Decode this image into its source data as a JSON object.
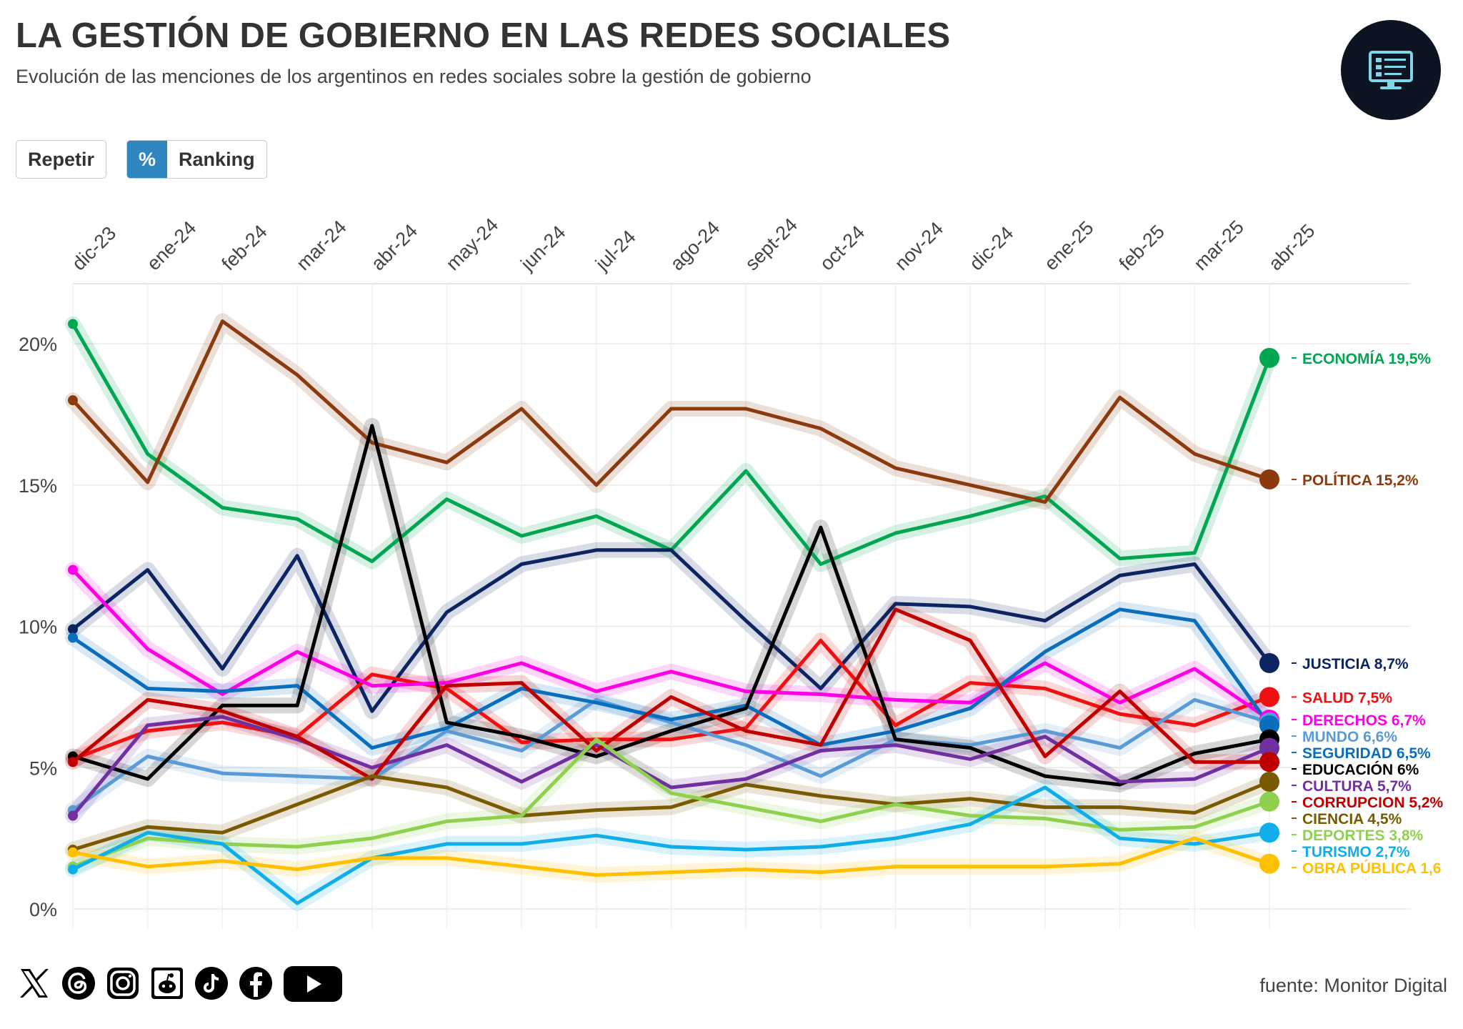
{
  "header": {
    "title": "LA GESTIÓN DE GOBIERNO EN LAS REDES SOCIALES",
    "subtitle": "Evolución de las menciones de los argentinos en redes sociales sobre la gestión de gobierno",
    "logo_icon": "monitor-icon"
  },
  "controls": {
    "replay_label": "Repetir",
    "percent_label": "%",
    "ranking_label": "Ranking",
    "active": "%"
  },
  "footer": {
    "source": "fuente: Monitor Digital",
    "social_icons": [
      "x-icon",
      "threads-icon",
      "instagram-icon",
      "reddit-icon",
      "tiktok-icon",
      "facebook-icon",
      "youtube-icon"
    ]
  },
  "chart_data": {
    "type": "line",
    "title": "LA GESTIÓN DE GOBIERNO EN LAS REDES SOCIALES",
    "subtitle": "Evolución de las menciones de los argentinos en redes sociales sobre la gestión de gobierno",
    "categories": [
      "dic-23",
      "ene-24",
      "feb-24",
      "mar-24",
      "abr-24",
      "may-24",
      "jun-24",
      "jul-24",
      "ago-24",
      "sept-24",
      "oct-24",
      "nov-24",
      "dic-24",
      "ene-25",
      "feb-25",
      "mar-25",
      "abr-25"
    ],
    "ylim": [
      0,
      22
    ],
    "yticks": [
      0,
      5,
      10,
      15,
      20
    ],
    "ytick_labels": [
      "0%",
      "5%",
      "10%",
      "15%",
      "20%"
    ],
    "grid": true,
    "legend": "right end labels",
    "series": [
      {
        "name": "ECONOMÍA",
        "label": "ECONOMÍA 19,5%",
        "color": "#00a651",
        "values": [
          20.7,
          16.1,
          14.2,
          13.8,
          12.3,
          14.5,
          13.2,
          13.9,
          12.7,
          15.5,
          12.2,
          13.3,
          13.9,
          14.6,
          12.4,
          12.6,
          19.5
        ]
      },
      {
        "name": "POLÍTICA",
        "label": "POLÍTICA 15,2%",
        "color": "#8b3a0e",
        "values": [
          18.0,
          15.1,
          20.8,
          18.9,
          16.5,
          15.8,
          17.7,
          15.0,
          17.7,
          17.7,
          17.0,
          15.6,
          15.0,
          14.4,
          18.1,
          16.1,
          15.2
        ]
      },
      {
        "name": "JUSTICIA",
        "label": "JUSTICIA 8,7%",
        "color": "#0c2461",
        "values": [
          9.9,
          12.0,
          8.5,
          12.5,
          7.0,
          10.5,
          12.2,
          12.7,
          12.7,
          10.2,
          7.8,
          10.8,
          10.7,
          10.2,
          11.8,
          12.2,
          8.7
        ]
      },
      {
        "name": "SALUD",
        "label": "SALUD 7,5%",
        "color": "#ee1111",
        "values": [
          5.3,
          6.3,
          6.6,
          6.1,
          8.3,
          7.8,
          5.9,
          6.0,
          6.0,
          6.4,
          9.5,
          6.5,
          8.0,
          7.8,
          6.9,
          6.5,
          7.5
        ]
      },
      {
        "name": "DERECHOS",
        "label": "DERECHOS 6,7%",
        "color": "#ff00e6",
        "values": [
          12.0,
          9.2,
          7.6,
          9.1,
          7.9,
          8.0,
          8.7,
          7.7,
          8.4,
          7.7,
          7.6,
          7.4,
          7.3,
          8.7,
          7.3,
          8.5,
          6.7
        ]
      },
      {
        "name": "MUNDO",
        "label": "MUNDO 6,6%",
        "color": "#5b9bd5",
        "values": [
          3.5,
          5.4,
          4.8,
          4.7,
          4.6,
          6.3,
          5.6,
          7.4,
          6.6,
          5.8,
          4.7,
          6.0,
          5.8,
          6.3,
          5.7,
          7.4,
          6.6
        ]
      },
      {
        "name": "SEGURIDAD",
        "label": "SEGURIDAD 6,5%",
        "color": "#0a6ebd",
        "values": [
          9.6,
          7.8,
          7.7,
          7.9,
          5.7,
          6.4,
          7.8,
          7.3,
          6.7,
          7.2,
          5.8,
          6.3,
          7.1,
          9.1,
          10.6,
          10.2,
          6.5
        ]
      },
      {
        "name": "EDUCACIÓN",
        "label": "EDUCACIÓN 6%",
        "color": "#000000",
        "values": [
          5.4,
          4.6,
          7.2,
          7.2,
          17.1,
          6.6,
          6.1,
          5.4,
          6.3,
          7.1,
          13.5,
          6.0,
          5.7,
          4.7,
          4.4,
          5.5,
          6.0
        ]
      },
      {
        "name": "CULTURA",
        "label": "CULTURA 5,7%",
        "color": "#7030a0",
        "values": [
          3.3,
          6.5,
          6.8,
          6.0,
          5.0,
          5.8,
          4.5,
          5.8,
          4.3,
          4.6,
          5.6,
          5.8,
          5.3,
          6.1,
          4.5,
          4.6,
          5.7
        ]
      },
      {
        "name": "CORRUPCION",
        "label": "CORRUPCION 5,2%",
        "color": "#c00000",
        "values": [
          5.2,
          7.4,
          7.0,
          6.1,
          4.6,
          7.9,
          8.0,
          5.6,
          7.5,
          6.3,
          5.8,
          10.6,
          9.5,
          5.4,
          7.7,
          5.2,
          5.2
        ]
      },
      {
        "name": "CIENCIA",
        "label": "CIENCIA 4,5%",
        "color": "#7a5a00",
        "values": [
          2.1,
          2.9,
          2.7,
          3.7,
          4.7,
          4.3,
          3.3,
          3.5,
          3.6,
          4.4,
          4.0,
          3.7,
          3.9,
          3.6,
          3.6,
          3.4,
          4.5
        ]
      },
      {
        "name": "DEPORTES",
        "label": "DEPORTES 3,8%",
        "color": "#8fd14f",
        "values": [
          1.5,
          2.5,
          2.3,
          2.2,
          2.5,
          3.1,
          3.3,
          6.0,
          4.1,
          3.6,
          3.1,
          3.7,
          3.3,
          3.2,
          2.8,
          2.9,
          3.8
        ]
      },
      {
        "name": "TURISMO",
        "label": "TURISMO 2,7%",
        "color": "#10aee8",
        "values": [
          1.4,
          2.7,
          2.3,
          0.2,
          1.8,
          2.3,
          2.3,
          2.6,
          2.2,
          2.1,
          2.2,
          2.5,
          3.0,
          4.3,
          2.5,
          2.3,
          2.7
        ]
      },
      {
        "name": "OBRA PÚBLICA",
        "label": "OBRA PÚBLICA 1,6",
        "color": "#ffc000",
        "values": [
          2.0,
          1.5,
          1.7,
          1.4,
          1.8,
          1.8,
          1.5,
          1.2,
          1.3,
          1.4,
          1.3,
          1.5,
          1.5,
          1.5,
          1.6,
          2.5,
          1.6
        ]
      }
    ]
  }
}
